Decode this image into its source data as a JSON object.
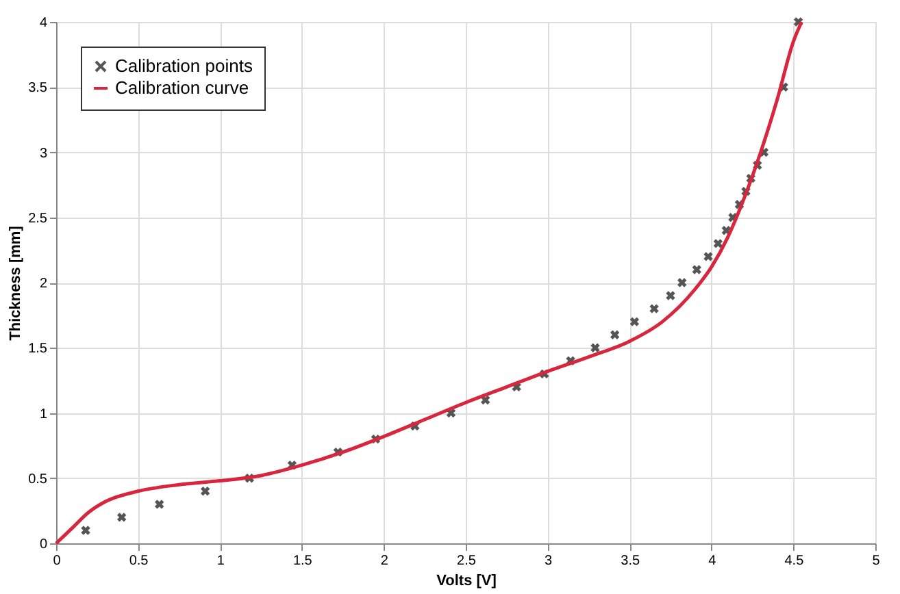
{
  "chart_data": {
    "type": "scatter",
    "xlabel": "Volts [V]",
    "ylabel": "Thickness [mm]",
    "xlim": [
      0,
      5
    ],
    "ylim": [
      0,
      4
    ],
    "xticks": [
      0,
      0.5,
      1,
      1.5,
      2,
      2.5,
      3,
      3.5,
      4,
      4.5,
      5
    ],
    "yticks": [
      0,
      0.5,
      1,
      1.5,
      2,
      2.5,
      3,
      3.5,
      4
    ],
    "grid": true,
    "legend": "top left",
    "series": [
      {
        "name": "Calibration points",
        "marker": "cross",
        "color": "#555555",
        "x": [
          0.18,
          0.4,
          0.63,
          0.91,
          1.18,
          1.44,
          1.72,
          1.95,
          2.19,
          2.41,
          2.62,
          2.81,
          2.98,
          3.14,
          3.29,
          3.41,
          3.53,
          3.65,
          3.75,
          3.82,
          3.91,
          3.98,
          4.04,
          4.09,
          4.13,
          4.17,
          4.21,
          4.24,
          4.28,
          4.32,
          4.44,
          4.53
        ],
        "values": [
          0.1,
          0.2,
          0.3,
          0.4,
          0.5,
          0.6,
          0.7,
          0.8,
          0.9,
          1.0,
          1.1,
          1.2,
          1.3,
          1.4,
          1.5,
          1.6,
          1.7,
          1.8,
          1.9,
          2.0,
          2.1,
          2.2,
          2.3,
          2.4,
          2.5,
          2.6,
          2.7,
          2.8,
          2.9,
          3.0,
          3.5,
          4.0
        ]
      },
      {
        "name": "Calibration curve",
        "type": "line",
        "line_style": "solid",
        "color": "#d7263d",
        "x": [
          0,
          0.1,
          0.2,
          0.3,
          0.5,
          0.75,
          1.0,
          1.25,
          1.5,
          1.75,
          2.0,
          2.25,
          2.5,
          2.75,
          3.0,
          3.25,
          3.5,
          3.7,
          3.9,
          4.0,
          4.1,
          4.2,
          4.3,
          4.4,
          4.5,
          4.55
        ],
        "values": [
          0,
          0.12,
          0.24,
          0.32,
          0.4,
          0.45,
          0.48,
          0.52,
          0.6,
          0.7,
          0.82,
          0.95,
          1.08,
          1.2,
          1.32,
          1.43,
          1.55,
          1.7,
          1.95,
          2.12,
          2.35,
          2.65,
          3.0,
          3.4,
          3.85,
          4.0
        ]
      }
    ]
  }
}
